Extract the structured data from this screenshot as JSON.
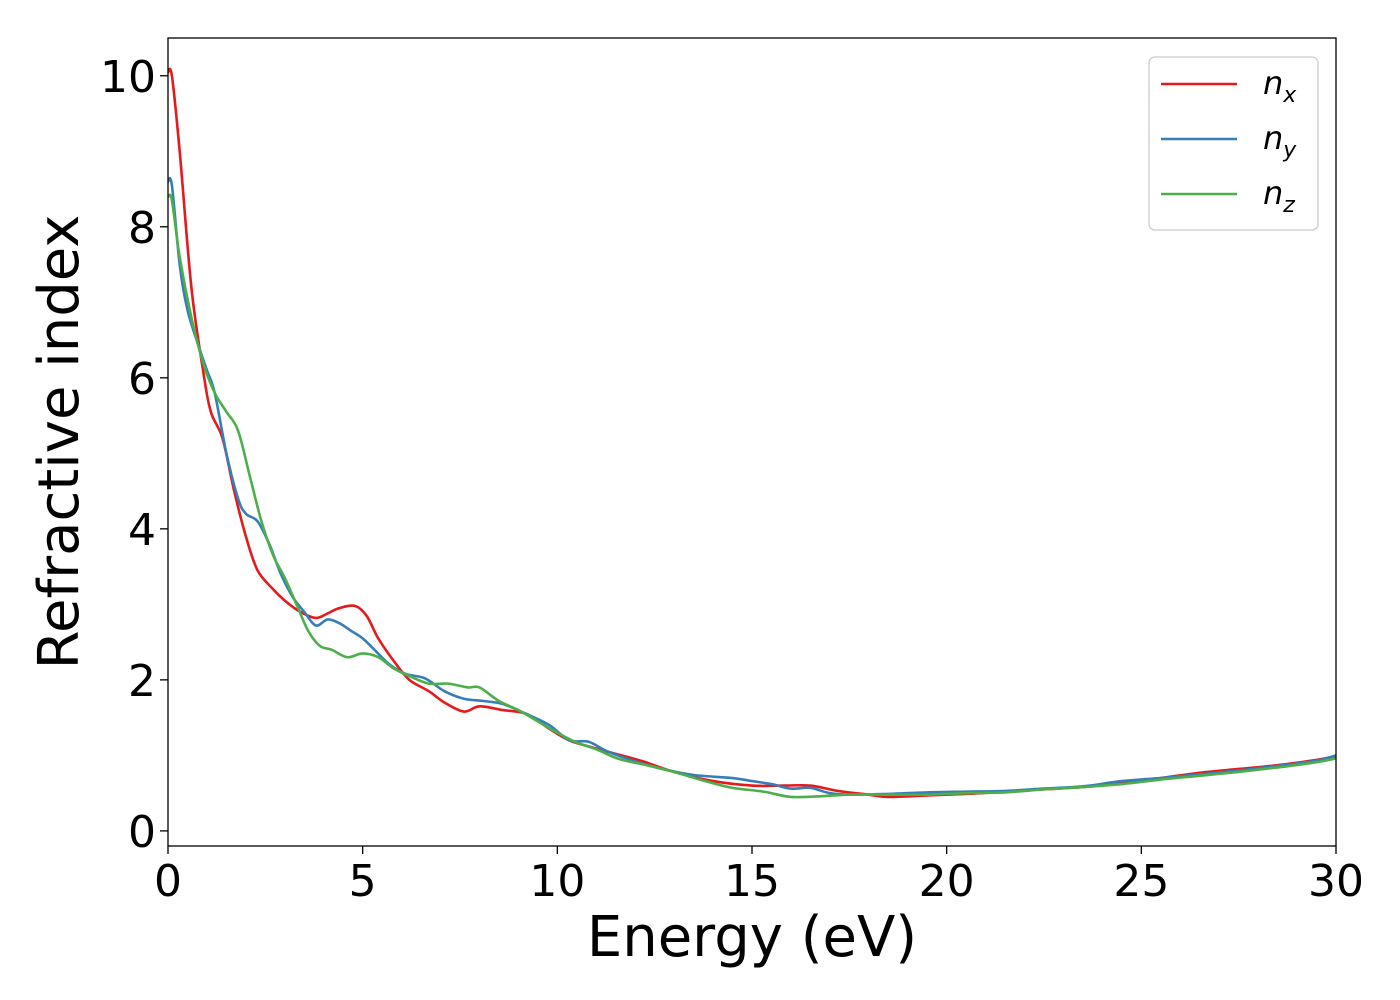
{
  "chart_data": {
    "type": "line",
    "title": "",
    "xlabel": "Energy (eV)",
    "ylabel": "Refractive index",
    "xlim": [
      0,
      30
    ],
    "ylim": [
      -0.2,
      10.5
    ],
    "xticks": [
      0,
      5,
      10,
      15,
      20,
      25,
      30
    ],
    "yticks": [
      0,
      2,
      4,
      6,
      8,
      10
    ],
    "grid": false,
    "legend_position": "top-right",
    "series": [
      {
        "name": "n",
        "subscript": "x",
        "color": "#e41a1c",
        "points": [
          [
            0,
            10.05
          ],
          [
            0.1,
            10.0
          ],
          [
            0.3,
            9.0
          ],
          [
            0.6,
            7.2
          ],
          [
            0.9,
            6.1
          ],
          [
            1.1,
            5.55
          ],
          [
            1.4,
            5.2
          ],
          [
            1.7,
            4.5
          ],
          [
            2.0,
            3.9
          ],
          [
            2.3,
            3.45
          ],
          [
            2.7,
            3.2
          ],
          [
            3.0,
            3.05
          ],
          [
            3.4,
            2.9
          ],
          [
            3.8,
            2.82
          ],
          [
            4.1,
            2.88
          ],
          [
            4.4,
            2.95
          ],
          [
            4.8,
            2.98
          ],
          [
            5.1,
            2.85
          ],
          [
            5.4,
            2.55
          ],
          [
            5.8,
            2.25
          ],
          [
            6.2,
            2.0
          ],
          [
            6.7,
            1.85
          ],
          [
            7.1,
            1.7
          ],
          [
            7.6,
            1.58
          ],
          [
            8.0,
            1.65
          ],
          [
            8.6,
            1.6
          ],
          [
            9.2,
            1.55
          ],
          [
            9.8,
            1.35
          ],
          [
            10.3,
            1.2
          ],
          [
            10.8,
            1.12
          ],
          [
            11.5,
            1.02
          ],
          [
            12.2,
            0.92
          ],
          [
            13.0,
            0.78
          ],
          [
            14.0,
            0.66
          ],
          [
            15.0,
            0.6
          ],
          [
            15.8,
            0.6
          ],
          [
            16.5,
            0.6
          ],
          [
            17.2,
            0.53
          ],
          [
            18.0,
            0.48
          ],
          [
            18.5,
            0.45
          ],
          [
            19.5,
            0.47
          ],
          [
            20.5,
            0.49
          ],
          [
            21.5,
            0.52
          ],
          [
            22.5,
            0.55
          ],
          [
            23.5,
            0.58
          ],
          [
            24.5,
            0.63
          ],
          [
            25.5,
            0.7
          ],
          [
            26.5,
            0.77
          ],
          [
            27.5,
            0.82
          ],
          [
            28.5,
            0.87
          ],
          [
            29.5,
            0.94
          ],
          [
            30,
            0.99
          ]
        ]
      },
      {
        "name": "n",
        "subscript": "y",
        "color": "#377eb8",
        "points": [
          [
            0,
            8.6
          ],
          [
            0.1,
            8.55
          ],
          [
            0.3,
            7.5
          ],
          [
            0.5,
            6.9
          ],
          [
            0.8,
            6.4
          ],
          [
            1.0,
            6.1
          ],
          [
            1.2,
            5.8
          ],
          [
            1.5,
            5.0
          ],
          [
            1.8,
            4.4
          ],
          [
            2.0,
            4.2
          ],
          [
            2.3,
            4.1
          ],
          [
            2.6,
            3.8
          ],
          [
            2.9,
            3.4
          ],
          [
            3.2,
            3.1
          ],
          [
            3.5,
            2.9
          ],
          [
            3.8,
            2.72
          ],
          [
            4.1,
            2.8
          ],
          [
            4.4,
            2.75
          ],
          [
            4.7,
            2.65
          ],
          [
            5.0,
            2.55
          ],
          [
            5.3,
            2.4
          ],
          [
            5.7,
            2.2
          ],
          [
            6.1,
            2.08
          ],
          [
            6.6,
            2.02
          ],
          [
            7.1,
            1.85
          ],
          [
            7.6,
            1.75
          ],
          [
            8.1,
            1.72
          ],
          [
            8.6,
            1.68
          ],
          [
            9.2,
            1.55
          ],
          [
            9.8,
            1.4
          ],
          [
            10.3,
            1.2
          ],
          [
            10.8,
            1.18
          ],
          [
            11.3,
            1.05
          ],
          [
            12.0,
            0.92
          ],
          [
            12.7,
            0.82
          ],
          [
            13.5,
            0.74
          ],
          [
            14.5,
            0.7
          ],
          [
            15.0,
            0.66
          ],
          [
            15.5,
            0.62
          ],
          [
            16.0,
            0.56
          ],
          [
            16.5,
            0.57
          ],
          [
            17.0,
            0.5
          ],
          [
            17.6,
            0.48
          ],
          [
            18.5,
            0.49
          ],
          [
            19.5,
            0.51
          ],
          [
            20.5,
            0.52
          ],
          [
            21.5,
            0.53
          ],
          [
            22.5,
            0.56
          ],
          [
            23.5,
            0.59
          ],
          [
            24.5,
            0.66
          ],
          [
            25.5,
            0.7
          ],
          [
            26.5,
            0.75
          ],
          [
            27.5,
            0.8
          ],
          [
            28.5,
            0.86
          ],
          [
            29.5,
            0.93
          ],
          [
            30,
            1.0
          ]
        ]
      },
      {
        "name": "n",
        "subscript": "z",
        "color": "#4daf4a",
        "points": [
          [
            0,
            8.4
          ],
          [
            0.1,
            8.35
          ],
          [
            0.3,
            7.6
          ],
          [
            0.6,
            6.8
          ],
          [
            0.9,
            6.2
          ],
          [
            1.2,
            5.8
          ],
          [
            1.5,
            5.55
          ],
          [
            1.8,
            5.3
          ],
          [
            2.1,
            4.7
          ],
          [
            2.4,
            4.1
          ],
          [
            2.7,
            3.65
          ],
          [
            3.0,
            3.35
          ],
          [
            3.3,
            3.0
          ],
          [
            3.6,
            2.65
          ],
          [
            3.9,
            2.45
          ],
          [
            4.2,
            2.4
          ],
          [
            4.6,
            2.3
          ],
          [
            5.0,
            2.35
          ],
          [
            5.4,
            2.3
          ],
          [
            5.8,
            2.15
          ],
          [
            6.2,
            2.05
          ],
          [
            6.7,
            1.95
          ],
          [
            7.2,
            1.95
          ],
          [
            7.7,
            1.9
          ],
          [
            8.0,
            1.9
          ],
          [
            8.5,
            1.72
          ],
          [
            9.0,
            1.6
          ],
          [
            9.5,
            1.45
          ],
          [
            10.0,
            1.3
          ],
          [
            10.5,
            1.17
          ],
          [
            11.0,
            1.08
          ],
          [
            11.6,
            0.95
          ],
          [
            12.3,
            0.87
          ],
          [
            13.0,
            0.78
          ],
          [
            13.8,
            0.66
          ],
          [
            14.5,
            0.57
          ],
          [
            15.3,
            0.52
          ],
          [
            16.0,
            0.45
          ],
          [
            16.8,
            0.46
          ],
          [
            17.5,
            0.48
          ],
          [
            18.5,
            0.48
          ],
          [
            19.5,
            0.48
          ],
          [
            20.5,
            0.5
          ],
          [
            21.5,
            0.51
          ],
          [
            22.5,
            0.55
          ],
          [
            23.5,
            0.58
          ],
          [
            24.5,
            0.62
          ],
          [
            25.5,
            0.68
          ],
          [
            26.5,
            0.73
          ],
          [
            27.5,
            0.78
          ],
          [
            28.5,
            0.84
          ],
          [
            29.5,
            0.91
          ],
          [
            30,
            0.96
          ]
        ]
      }
    ]
  }
}
